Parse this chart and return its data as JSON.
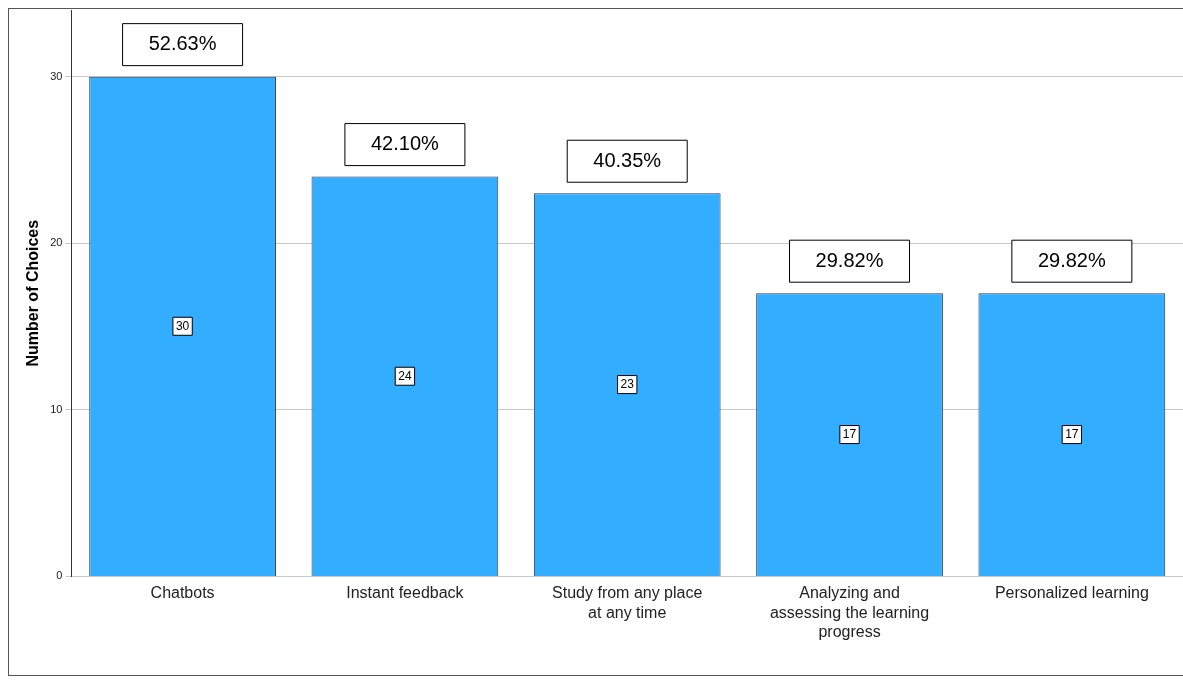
{
  "chart_data": {
    "type": "bar",
    "ylabel": "Number of Choices",
    "categories": [
      "Chatbots",
      "Instant feedback",
      "Study from any place at any time",
      "Analyzing and assessing the learning progress",
      "Personalized learning"
    ],
    "values": [
      30,
      24,
      23,
      17,
      17
    ],
    "color": "#33adff",
    "ylim": [
      0,
      34
    ],
    "yticks": [
      0,
      10,
      20,
      30
    ],
    "grid": "y",
    "data_labels": true,
    "annotations": [
      {
        "text": "52.63%",
        "x": "Chatbots",
        "y": 30
      },
      {
        "text": "42.10%",
        "x": "Instant feedback",
        "y": 24
      },
      {
        "text": "40.35%",
        "x": "Study from any place at any time",
        "y": 23
      },
      {
        "text": "29.82%",
        "x": "Analyzing and assessing the learning progress",
        "y": 17
      },
      {
        "text": "29.82%",
        "x": "Personalized learning",
        "y": 17
      }
    ]
  }
}
